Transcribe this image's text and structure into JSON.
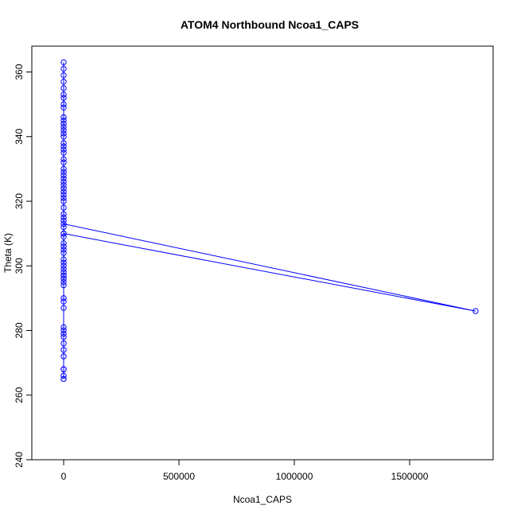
{
  "chart_data": {
    "type": "line",
    "marker": "circle",
    "title": "ATOM4 Northbound Ncoa1_CAPS",
    "x_label": "Ncoa1_CAPS",
    "y_label": "Theta (K)",
    "color": "#0000ff",
    "x": [
      0,
      0,
      0,
      0,
      0,
      0,
      0,
      0,
      0,
      0,
      0,
      0,
      0,
      0,
      0,
      0,
      0,
      0,
      0,
      0,
      0,
      0,
      0,
      0,
      0,
      0,
      0,
      0,
      0,
      0,
      0,
      0,
      0,
      0,
      0,
      0,
      0,
      0,
      0,
      0,
      0,
      0,
      0,
      0,
      1786000,
      0,
      0,
      0,
      0,
      0,
      0,
      0,
      0,
      0,
      0,
      0,
      0,
      0,
      0,
      0,
      0,
      0,
      0,
      0,
      0,
      0,
      0,
      0,
      0,
      0,
      0,
      0,
      0
    ],
    "values": [
      300,
      296,
      305,
      312,
      320,
      326,
      330,
      337,
      342,
      345,
      340,
      333,
      325,
      318,
      310,
      302,
      297,
      290,
      281,
      276,
      268,
      265,
      272,
      279,
      287,
      295,
      299,
      306,
      314,
      322,
      328,
      336,
      344,
      349,
      355,
      361,
      363,
      357,
      352,
      346,
      338,
      329,
      321,
      313,
      286,
      310,
      304,
      298,
      294,
      289,
      280,
      274,
      266,
      265,
      268,
      278,
      297,
      307,
      316,
      324,
      332,
      341,
      353,
      359,
      350,
      343,
      335,
      327,
      323,
      315,
      309,
      301,
      296
    ],
    "xlim": [
      -138000,
      1862000
    ],
    "xticks": [
      0,
      500000,
      1000000,
      1500000
    ],
    "ylim": [
      240,
      368
    ],
    "yticks": [
      240,
      260,
      280,
      300,
      320,
      340,
      360
    ]
  }
}
